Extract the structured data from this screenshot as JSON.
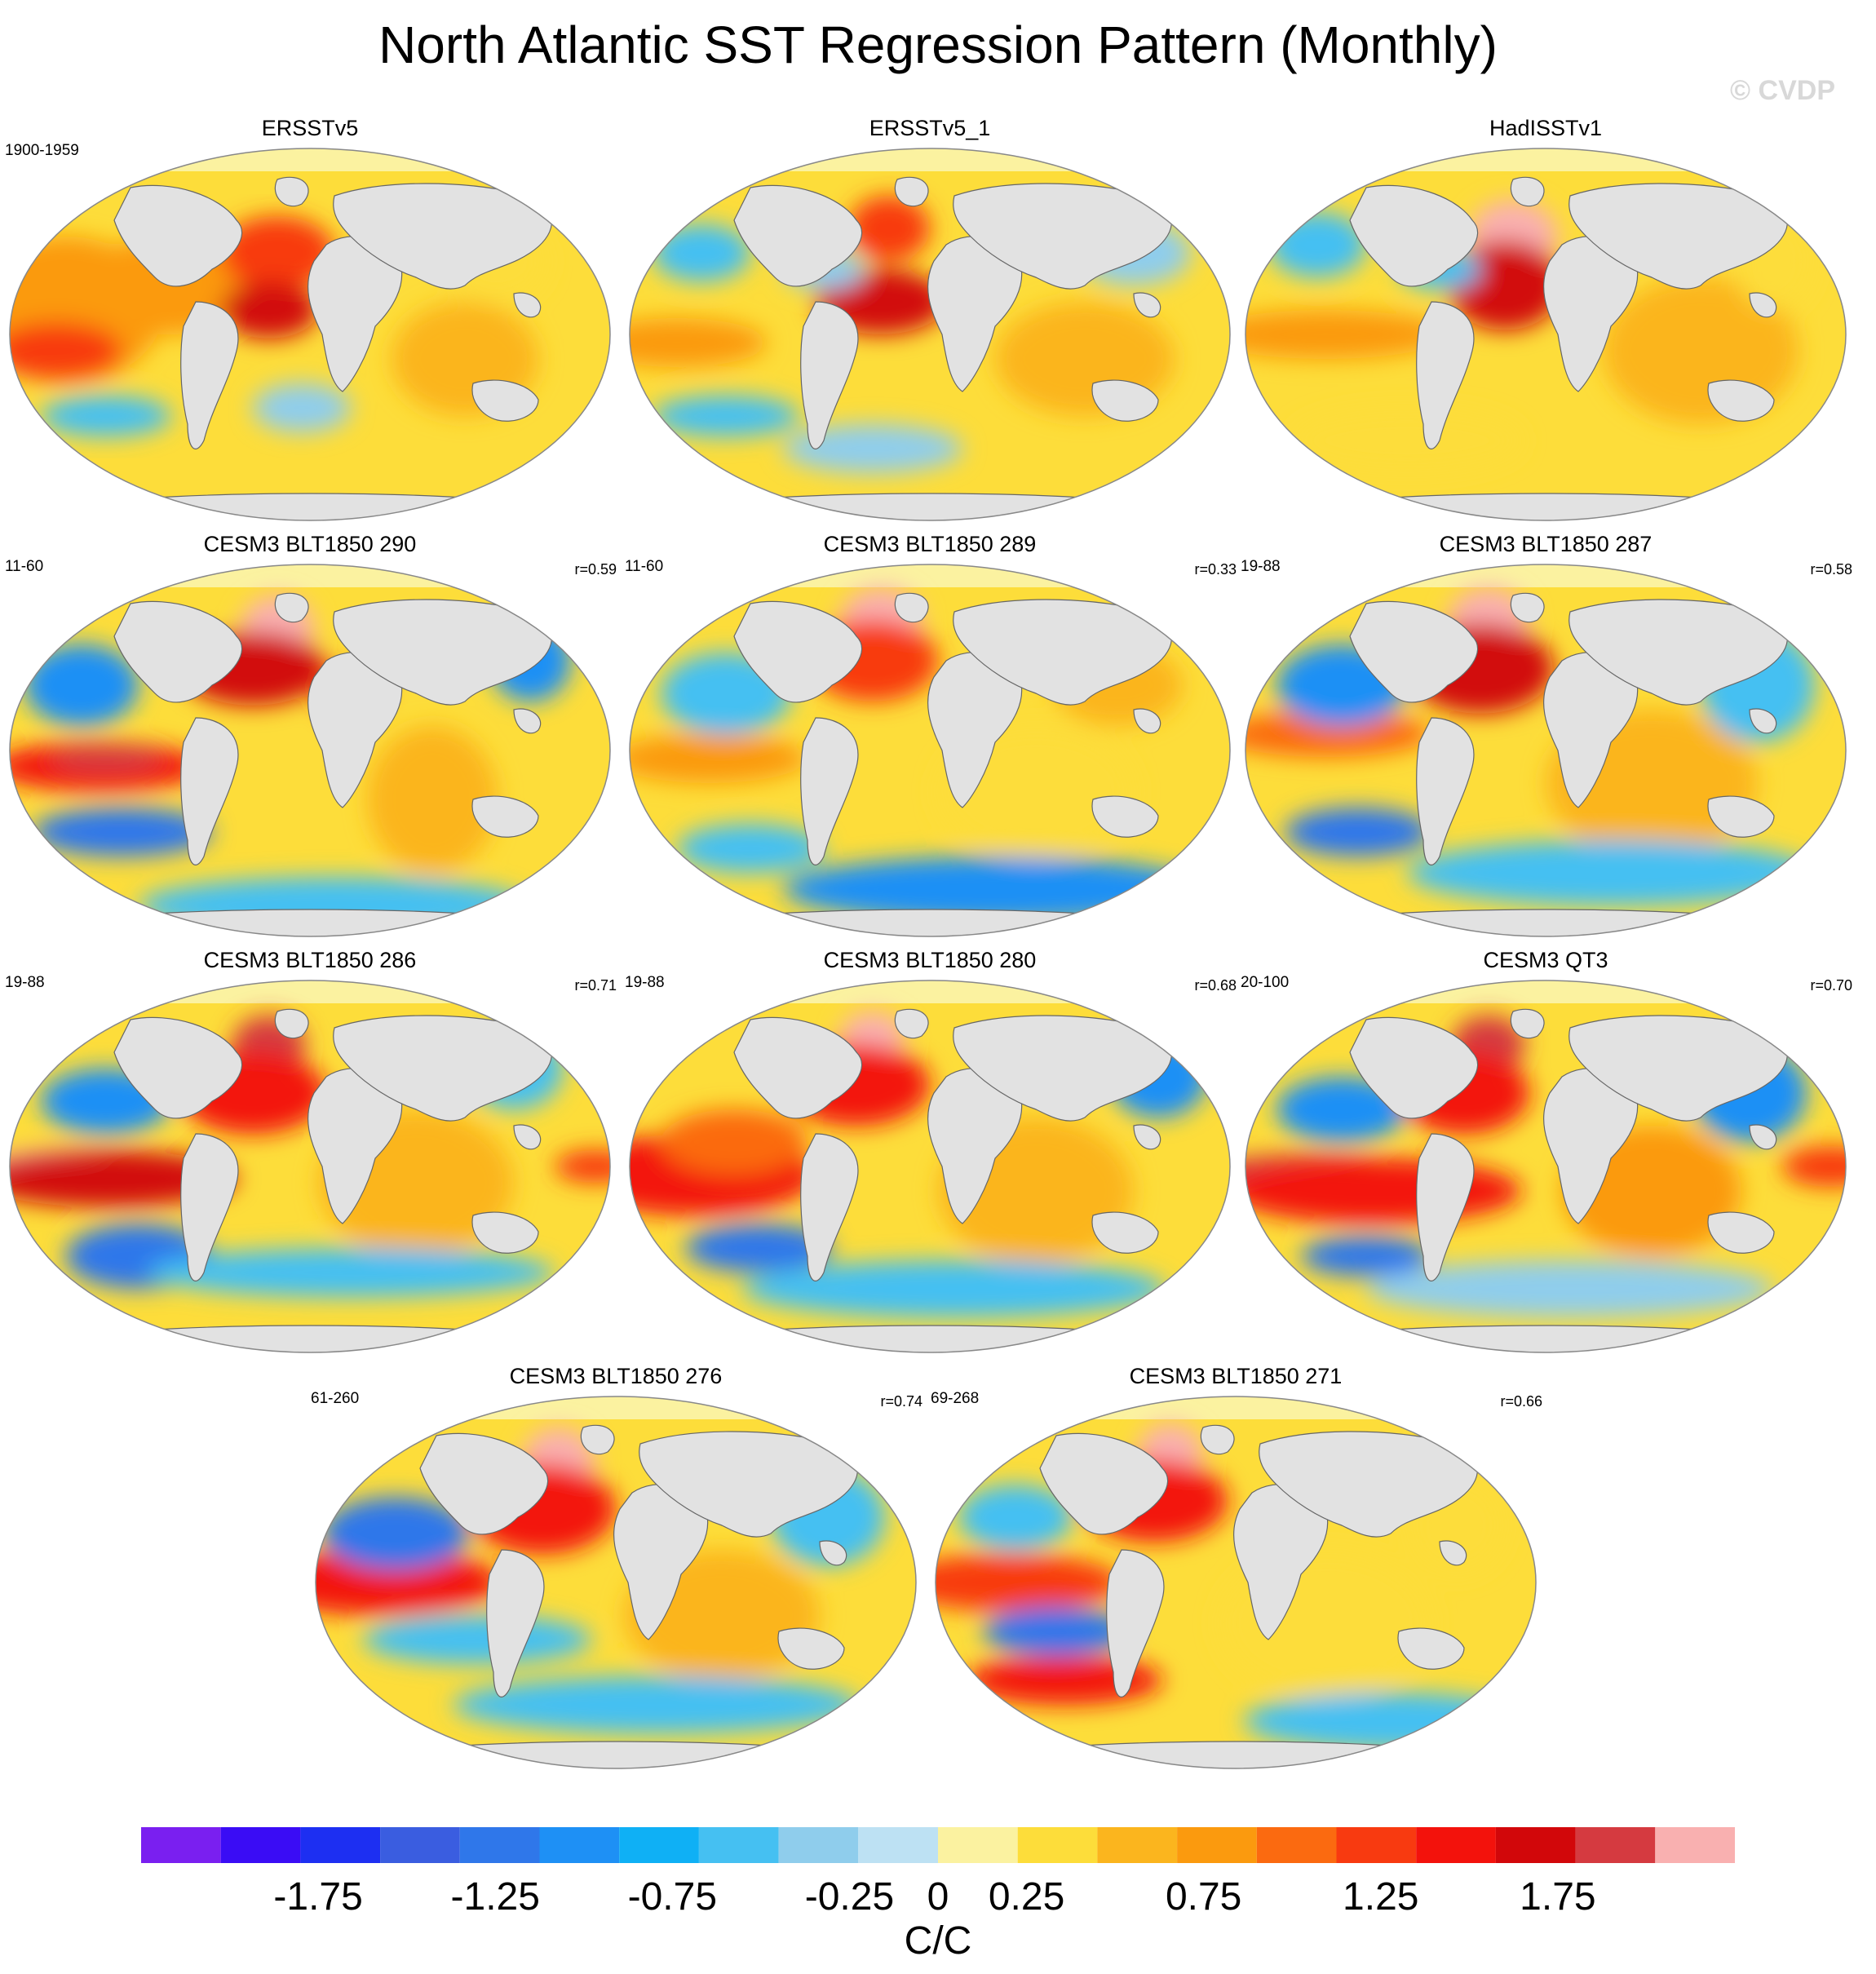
{
  "title": "North Atlantic SST Regression Pattern (Monthly)",
  "watermark": "© CVDP",
  "panels": [
    {
      "name": "ERSSTv5",
      "left": "1900-1959",
      "right": "",
      "pattern": "obs1"
    },
    {
      "name": "ERSSTv5_1",
      "left": "",
      "right": "",
      "pattern": "obs2"
    },
    {
      "name": "HadISSTv1",
      "left": "",
      "right": "",
      "pattern": "obs3"
    },
    {
      "name": "CESM3 BLT1850 290",
      "left": "11-60",
      "right": "r=0.59",
      "pattern": "m1"
    },
    {
      "name": "CESM3 BLT1850 289",
      "left": "11-60",
      "right": "r=0.33",
      "pattern": "m2"
    },
    {
      "name": "CESM3 BLT1850 287",
      "left": "19-88",
      "right": "r=0.58",
      "pattern": "m3"
    },
    {
      "name": "CESM3 BLT1850 286",
      "left": "19-88",
      "right": "r=0.71",
      "pattern": "m4"
    },
    {
      "name": "CESM3 BLT1850 280",
      "left": "19-88",
      "right": "r=0.68",
      "pattern": "m5"
    },
    {
      "name": "CESM3 QT3",
      "left": "20-100",
      "right": "r=0.70",
      "pattern": "m6"
    },
    {
      "name": "CESM3 BLT1850 276",
      "left": "61-260",
      "right": "r=0.74",
      "pattern": "m7"
    },
    {
      "name": "CESM3 BLT1850 271",
      "left": "69-268",
      "right": "r=0.66",
      "pattern": "m8"
    }
  ],
  "colorbar": {
    "colors": [
      "#7a1ff0",
      "#3a0cf5",
      "#1d2ff2",
      "#3a5de0",
      "#2f77ea",
      "#1e90f5",
      "#0fb0f5",
      "#45c0f2",
      "#8fcdec",
      "#bde1f3",
      "#fbf2a0",
      "#fddd3a",
      "#fbb51e",
      "#fb9a0e",
      "#fb6a10",
      "#f83a10",
      "#f3120c",
      "#d2070a",
      "#d53a40",
      "#f9b0b0"
    ],
    "labels": [
      "-1.75",
      "-1.25",
      "-0.75",
      "-0.25",
      "0",
      "0.25",
      "0.75",
      "1.25",
      "1.75"
    ],
    "label_values": [
      -1.75,
      -1.25,
      -0.75,
      -0.25,
      0,
      0.25,
      0.75,
      1.25,
      1.75
    ],
    "range": [
      -2.25,
      2.25
    ],
    "units": "C/C"
  }
}
